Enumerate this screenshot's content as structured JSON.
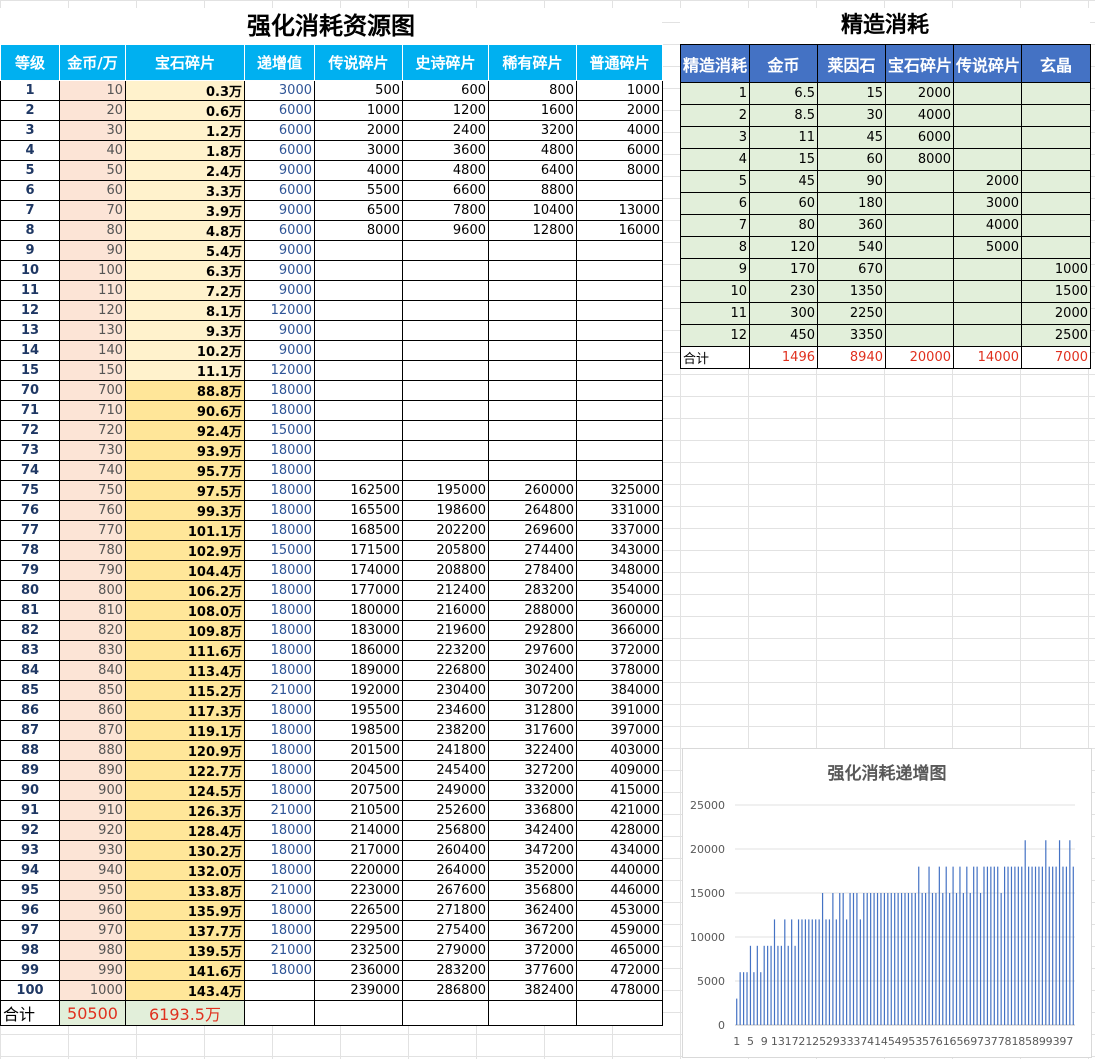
{
  "main": {
    "title": "强化消耗资源图",
    "headers": [
      "等级",
      "金币/万",
      "宝石碎片",
      "递增值",
      "传说碎片",
      "史诗碎片",
      "稀有碎片",
      "普通碎片"
    ],
    "rows": [
      [
        "1",
        "10",
        "0.3万",
        "3000",
        "500",
        "600",
        "800",
        "1000"
      ],
      [
        "2",
        "20",
        "0.6万",
        "6000",
        "1000",
        "1200",
        "1600",
        "2000"
      ],
      [
        "3",
        "30",
        "1.2万",
        "6000",
        "2000",
        "2400",
        "3200",
        "4000"
      ],
      [
        "4",
        "40",
        "1.8万",
        "6000",
        "3000",
        "3600",
        "4800",
        "6000"
      ],
      [
        "5",
        "50",
        "2.4万",
        "9000",
        "4000",
        "4800",
        "6400",
        "8000"
      ],
      [
        "6",
        "60",
        "3.3万",
        "6000",
        "5500",
        "6600",
        "8800",
        ""
      ],
      [
        "7",
        "70",
        "3.9万",
        "9000",
        "6500",
        "7800",
        "10400",
        "13000"
      ],
      [
        "8",
        "80",
        "4.8万",
        "6000",
        "8000",
        "9600",
        "12800",
        "16000"
      ],
      [
        "9",
        "90",
        "5.4万",
        "9000",
        "",
        "",
        "",
        ""
      ],
      [
        "10",
        "100",
        "6.3万",
        "9000",
        "",
        "",
        "",
        ""
      ],
      [
        "11",
        "110",
        "7.2万",
        "9000",
        "",
        "",
        "",
        ""
      ],
      [
        "12",
        "120",
        "8.1万",
        "12000",
        "",
        "",
        "",
        ""
      ],
      [
        "13",
        "130",
        "9.3万",
        "9000",
        "",
        "",
        "",
        ""
      ],
      [
        "14",
        "140",
        "10.2万",
        "9000",
        "",
        "",
        "",
        ""
      ],
      [
        "15",
        "150",
        "11.1万",
        "12000",
        "",
        "",
        "",
        ""
      ],
      [
        "70",
        "700",
        "88.8万",
        "18000",
        "",
        "",
        "",
        ""
      ],
      [
        "71",
        "710",
        "90.6万",
        "18000",
        "",
        "",
        "",
        ""
      ],
      [
        "72",
        "720",
        "92.4万",
        "15000",
        "",
        "",
        "",
        ""
      ],
      [
        "73",
        "730",
        "93.9万",
        "18000",
        "",
        "",
        "",
        ""
      ],
      [
        "74",
        "740",
        "95.7万",
        "18000",
        "",
        "",
        "",
        ""
      ],
      [
        "75",
        "750",
        "97.5万",
        "18000",
        "162500",
        "195000",
        "260000",
        "325000"
      ],
      [
        "76",
        "760",
        "99.3万",
        "18000",
        "165500",
        "198600",
        "264800",
        "331000"
      ],
      [
        "77",
        "770",
        "101.1万",
        "18000",
        "168500",
        "202200",
        "269600",
        "337000"
      ],
      [
        "78",
        "780",
        "102.9万",
        "15000",
        "171500",
        "205800",
        "274400",
        "343000"
      ],
      [
        "79",
        "790",
        "104.4万",
        "18000",
        "174000",
        "208800",
        "278400",
        "348000"
      ],
      [
        "80",
        "800",
        "106.2万",
        "18000",
        "177000",
        "212400",
        "283200",
        "354000"
      ],
      [
        "81",
        "810",
        "108.0万",
        "18000",
        "180000",
        "216000",
        "288000",
        "360000"
      ],
      [
        "82",
        "820",
        "109.8万",
        "18000",
        "183000",
        "219600",
        "292800",
        "366000"
      ],
      [
        "83",
        "830",
        "111.6万",
        "18000",
        "186000",
        "223200",
        "297600",
        "372000"
      ],
      [
        "84",
        "840",
        "113.4万",
        "18000",
        "189000",
        "226800",
        "302400",
        "378000"
      ],
      [
        "85",
        "850",
        "115.2万",
        "21000",
        "192000",
        "230400",
        "307200",
        "384000"
      ],
      [
        "86",
        "860",
        "117.3万",
        "18000",
        "195500",
        "234600",
        "312800",
        "391000"
      ],
      [
        "87",
        "870",
        "119.1万",
        "18000",
        "198500",
        "238200",
        "317600",
        "397000"
      ],
      [
        "88",
        "880",
        "120.9万",
        "18000",
        "201500",
        "241800",
        "322400",
        "403000"
      ],
      [
        "89",
        "890",
        "122.7万",
        "18000",
        "204500",
        "245400",
        "327200",
        "409000"
      ],
      [
        "90",
        "900",
        "124.5万",
        "18000",
        "207500",
        "249000",
        "332000",
        "415000"
      ],
      [
        "91",
        "910",
        "126.3万",
        "21000",
        "210500",
        "252600",
        "336800",
        "421000"
      ],
      [
        "92",
        "920",
        "128.4万",
        "18000",
        "214000",
        "256800",
        "342400",
        "428000"
      ],
      [
        "93",
        "930",
        "130.2万",
        "18000",
        "217000",
        "260400",
        "347200",
        "434000"
      ],
      [
        "94",
        "940",
        "132.0万",
        "18000",
        "220000",
        "264000",
        "352000",
        "440000"
      ],
      [
        "95",
        "950",
        "133.8万",
        "21000",
        "223000",
        "267600",
        "356800",
        "446000"
      ],
      [
        "96",
        "960",
        "135.9万",
        "18000",
        "226500",
        "271800",
        "362400",
        "453000"
      ],
      [
        "97",
        "970",
        "137.7万",
        "18000",
        "229500",
        "275400",
        "367200",
        "459000"
      ],
      [
        "98",
        "980",
        "139.5万",
        "21000",
        "232500",
        "279000",
        "372000",
        "465000"
      ],
      [
        "99",
        "990",
        "141.6万",
        "18000",
        "236000",
        "283200",
        "377600",
        "472000"
      ],
      [
        "100",
        "1000",
        "143.4万",
        "",
        "239000",
        "286800",
        "382400",
        "478000"
      ]
    ],
    "sum_label": "合计",
    "sum_gold": "50500",
    "sum_gem": "6193.5万"
  },
  "refine": {
    "title": "精造消耗",
    "headers": [
      "精造消耗",
      "金币",
      "莱因石",
      "宝石碎片",
      "传说碎片",
      "玄晶"
    ],
    "rows": [
      [
        "1",
        "6.5",
        "15",
        "2000",
        "",
        ""
      ],
      [
        "2",
        "8.5",
        "30",
        "4000",
        "",
        ""
      ],
      [
        "3",
        "11",
        "45",
        "6000",
        "",
        ""
      ],
      [
        "4",
        "15",
        "60",
        "8000",
        "",
        ""
      ],
      [
        "5",
        "45",
        "90",
        "",
        "2000",
        ""
      ],
      [
        "6",
        "60",
        "180",
        "",
        "3000",
        ""
      ],
      [
        "7",
        "80",
        "360",
        "",
        "4000",
        ""
      ],
      [
        "8",
        "120",
        "540",
        "",
        "5000",
        ""
      ],
      [
        "9",
        "170",
        "670",
        "",
        "",
        "1000"
      ],
      [
        "10",
        "230",
        "1350",
        "",
        "",
        "1500"
      ],
      [
        "11",
        "300",
        "2250",
        "",
        "",
        "2000"
      ],
      [
        "12",
        "450",
        "3350",
        "",
        "",
        "2500"
      ]
    ],
    "sum": [
      "合计",
      "1496",
      "8940",
      "20000",
      "14000",
      "7000"
    ]
  },
  "chart_data": {
    "type": "bar",
    "title": "强化消耗递增图",
    "xlabel": "",
    "ylabel": "",
    "ylim": [
      0,
      25000
    ],
    "yticks": [
      "0",
      "5000",
      "10000",
      "15000",
      "20000",
      "25000"
    ],
    "xtick_labels": [
      "1",
      "5",
      "9",
      "13",
      "17",
      "21",
      "25",
      "29",
      "33",
      "37",
      "41",
      "45",
      "49",
      "53",
      "57",
      "61",
      "65",
      "69",
      "73",
      "77",
      "81",
      "85",
      "89",
      "93",
      "97"
    ],
    "categories": [
      "1",
      "2",
      "3",
      "4",
      "5",
      "6",
      "7",
      "8",
      "9",
      "10",
      "11",
      "12",
      "13",
      "14",
      "15",
      "16",
      "17",
      "18",
      "19",
      "20",
      "21",
      "22",
      "23",
      "24",
      "25",
      "26",
      "27",
      "28",
      "29",
      "30",
      "31",
      "32",
      "33",
      "34",
      "35",
      "36",
      "37",
      "38",
      "39",
      "40",
      "41",
      "42",
      "43",
      "44",
      "45",
      "46",
      "47",
      "48",
      "49",
      "50",
      "51",
      "52",
      "53",
      "54",
      "55",
      "56",
      "57",
      "58",
      "59",
      "60",
      "61",
      "62",
      "63",
      "64",
      "65",
      "66",
      "67",
      "68",
      "69",
      "70",
      "71",
      "72",
      "73",
      "74",
      "75",
      "76",
      "77",
      "78",
      "79",
      "80",
      "81",
      "82",
      "83",
      "84",
      "85",
      "86",
      "87",
      "88",
      "89",
      "90",
      "91",
      "92",
      "93",
      "94",
      "95",
      "96",
      "97",
      "98",
      "99"
    ],
    "values": [
      3000,
      6000,
      6000,
      6000,
      9000,
      6000,
      9000,
      6000,
      9000,
      9000,
      9000,
      12000,
      9000,
      9000,
      12000,
      9000,
      12000,
      9000,
      12000,
      12000,
      12000,
      12000,
      12000,
      12000,
      12000,
      15000,
      12000,
      12000,
      15000,
      12000,
      15000,
      15000,
      12000,
      15000,
      15000,
      15000,
      12000,
      15000,
      15000,
      15000,
      15000,
      15000,
      15000,
      15000,
      15000,
      15000,
      15000,
      15000,
      15000,
      15000,
      15000,
      15000,
      15000,
      18000,
      15000,
      15000,
      18000,
      15000,
      15000,
      18000,
      15000,
      18000,
      15000,
      18000,
      15000,
      18000,
      15000,
      18000,
      15000,
      18000,
      18000,
      15000,
      18000,
      18000,
      18000,
      18000,
      18000,
      15000,
      18000,
      18000,
      18000,
      18000,
      18000,
      18000,
      21000,
      18000,
      18000,
      18000,
      18000,
      18000,
      21000,
      18000,
      18000,
      18000,
      21000,
      18000,
      18000,
      21000,
      18000
    ],
    "color": "#4472c4"
  }
}
